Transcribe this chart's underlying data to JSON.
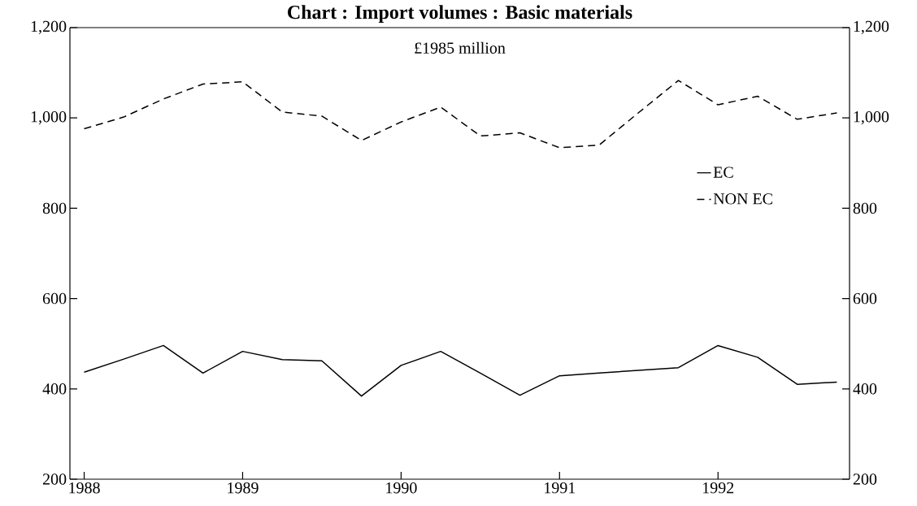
{
  "chart_data": {
    "type": "line",
    "title": "Chart : Import volumes : Basic materials",
    "annotations": [
      "£1985 million"
    ],
    "x": [
      1988,
      1988.25,
      1988.5,
      1988.75,
      1989,
      1989.25,
      1989.5,
      1989.75,
      1990,
      1990.25,
      1990.5,
      1990.75,
      1991,
      1991.25,
      1991.5,
      1991.75,
      1992,
      1992.25,
      1992.5,
      1992.75
    ],
    "series": [
      {
        "name": "EC",
        "color": "#000000",
        "line_style": "solid",
        "values": [
          437,
          466,
          496,
          435,
          483,
          465,
          462,
          384,
          452,
          483,
          435,
          386,
          429,
          435,
          441,
          447,
          496,
          470,
          410,
          415
        ]
      },
      {
        "name": "NON EC",
        "color": "#000000",
        "line_style": "dashed",
        "values": [
          976,
          1002,
          1042,
          1075,
          1080,
          1013,
          1004,
          950,
          991,
          1024,
          960,
          967,
          934,
          940,
          1012,
          1083,
          1029,
          1048,
          997,
          1011
        ]
      }
    ],
    "xlim": [
      1987.91,
      1992.83
    ],
    "xticks": [
      1988,
      1989,
      1990,
      1991,
      1992
    ],
    "ylim": [
      200,
      1200
    ],
    "yticks": [
      {
        "value": 200,
        "label": "200"
      },
      {
        "value": 400,
        "label": "400"
      },
      {
        "value": 600,
        "label": "600"
      },
      {
        "value": 800,
        "label": "800"
      },
      {
        "value": 1000,
        "label": "1,000"
      },
      {
        "value": 1200,
        "label": "1,200"
      }
    ],
    "y2lim": [
      200,
      1200
    ],
    "y2ticks": [
      {
        "value": 200,
        "label": "200"
      },
      {
        "value": 400,
        "label": "400"
      },
      {
        "value": 600,
        "label": "600"
      },
      {
        "value": 800,
        "label": "800"
      },
      {
        "value": 1000,
        "label": "1,000"
      },
      {
        "value": 1200,
        "label": "1,200"
      }
    ],
    "grid": false,
    "legend": "right",
    "marker": "none"
  }
}
